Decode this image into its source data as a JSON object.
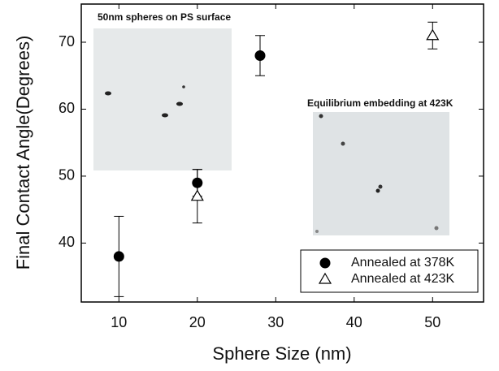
{
  "chart_data": {
    "type": "scatter",
    "xlabel": "Sphere Size (nm)",
    "ylabel": "Final Contact Angle(Degrees)",
    "xlim": [
      5.2,
      56.5
    ],
    "xticks": [
      10,
      20,
      30,
      40,
      50
    ],
    "ylim": [
      31.2,
      75.7
    ],
    "yticks": [
      40,
      50,
      60,
      70
    ],
    "legend": "lower right",
    "annotations": [
      "50nm spheres on PS surface",
      "Equilibrium embedding at 423K"
    ],
    "series": [
      {
        "name": "Annealed at 378K",
        "color": "#000000",
        "marker": "circle",
        "x": [
          10,
          20,
          28
        ],
        "values": [
          38,
          49,
          68
        ],
        "errors": [
          6,
          2,
          3
        ]
      },
      {
        "name": "Annealed at 423K",
        "color": "#000000",
        "marker": "triangle",
        "x": [
          20,
          50
        ],
        "values": [
          47,
          71
        ],
        "errors": [
          4,
          2
        ]
      }
    ]
  }
}
